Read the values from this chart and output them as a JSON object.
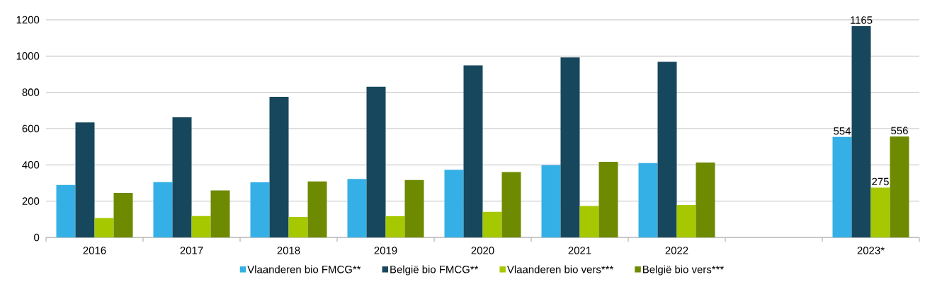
{
  "chart_data": {
    "type": "bar",
    "categories": [
      "2016",
      "2017",
      "2018",
      "2019",
      "2020",
      "2021",
      "2022",
      null,
      "2023*"
    ],
    "series": [
      {
        "name": "Vlaanderen bio FMCG**",
        "color": "#35b0e6",
        "values": [
          289,
          305,
          304,
          322,
          373,
          398,
          410,
          null,
          554
        ],
        "value_labels": [
          null,
          null,
          null,
          null,
          null,
          null,
          null,
          null,
          "554"
        ]
      },
      {
        "name": "België bio FMCG**",
        "color": "#17475c",
        "values": [
          634,
          662,
          775,
          831,
          949,
          993,
          968,
          null,
          1165
        ],
        "value_labels": [
          null,
          null,
          null,
          null,
          null,
          null,
          null,
          null,
          "1165"
        ]
      },
      {
        "name": "Vlaanderen bio vers***",
        "color": "#a6c800",
        "values": [
          107,
          118,
          113,
          117,
          141,
          173,
          179,
          null,
          275
        ],
        "value_labels": [
          null,
          null,
          null,
          null,
          null,
          null,
          null,
          null,
          "275"
        ]
      },
      {
        "name": "België bio vers***",
        "color": "#6e8a00",
        "values": [
          245,
          259,
          309,
          317,
          360,
          417,
          413,
          null,
          556
        ],
        "value_labels": [
          null,
          null,
          null,
          null,
          null,
          null,
          null,
          null,
          "556"
        ]
      }
    ],
    "ylim": [
      0,
      1200
    ],
    "yticks": [
      0,
      200,
      400,
      600,
      800,
      1000,
      1200
    ],
    "grid": "y",
    "legend": "bottom"
  }
}
